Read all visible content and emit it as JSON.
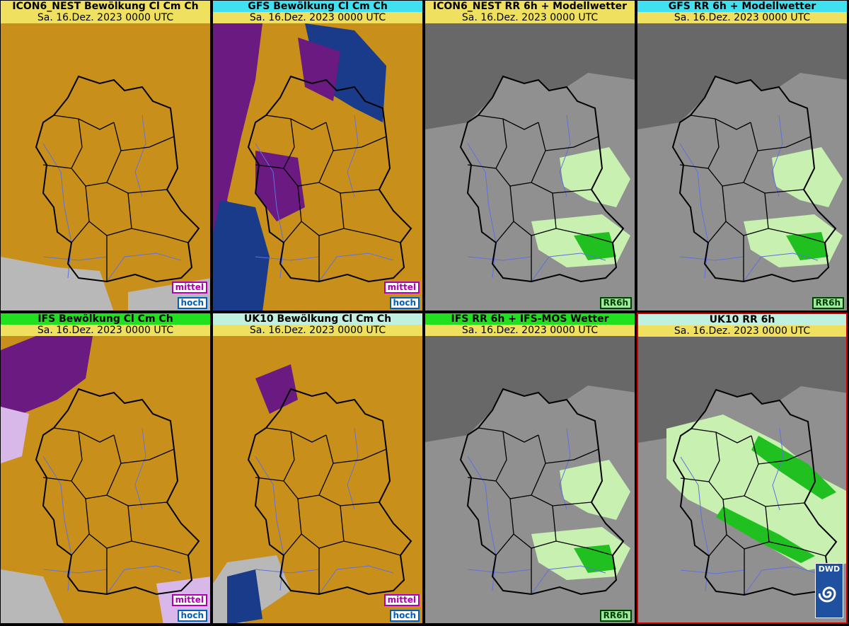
{
  "panels": [
    {
      "title": "ICON6_NEST Bewölkung Cl Cm Ch",
      "date": "Sa. 16.Dez. 2023 0000 UTC",
      "title_bg": "#f0e060",
      "type": "cloud",
      "badges": [
        "mittel",
        "hoch"
      ]
    },
    {
      "title": "GFS Bewölkung Cl Cm Ch",
      "date": "Sa. 16.Dez. 2023 0000 UTC",
      "title_bg": "#40e0f0",
      "type": "cloud",
      "badges": [
        "mittel",
        "hoch"
      ]
    },
    {
      "title": "ICON6_NEST RR 6h + Modellwetter",
      "date": "Sa. 16.Dez. 2023 0000 UTC",
      "title_bg": "#f0e060",
      "type": "rain",
      "badges": [
        "RR6h"
      ]
    },
    {
      "title": "GFS RR 6h + Modellwetter",
      "date": "Sa. 16.Dez. 2023 0000 UTC",
      "title_bg": "#40e0f0",
      "type": "rain",
      "badges": [
        "RR6h"
      ]
    },
    {
      "title": "IFS Bewölkung Cl Cm Ch",
      "date": "Sa. 16.Dez. 2023 0000 UTC",
      "title_bg": "#20e020",
      "type": "cloud",
      "badges": [
        "mittel",
        "hoch"
      ]
    },
    {
      "title": "UK10 Bewölkung Cl Cm Ch",
      "date": "Sa. 16.Dez. 2023 0000 UTC",
      "title_bg": "#c0f0e0",
      "type": "cloud",
      "badges": [
        "mittel",
        "hoch"
      ]
    },
    {
      "title": "IFS RR 6h + IFS-MOS Wetter",
      "date": "Sa. 16.Dez. 2023 0000 UTC",
      "title_bg": "#20e020",
      "type": "rain",
      "badges": [
        "RR6h"
      ]
    },
    {
      "title": "UK10 RR 6h",
      "date": "Sa. 16.Dez. 2023 0000 UTC",
      "title_bg": "#c0f0e0",
      "type": "rain",
      "badges": [],
      "logo": "DWD"
    }
  ],
  "colors": {
    "cloud_low": "#c8901a",
    "cloud_mid": "#6a1a80",
    "cloud_high": "#1a3a8a",
    "cloud_free": "#b8b8b8",
    "rain_land": "#909090",
    "rain_sea": "#686868",
    "rain_light": "#c8f0b0",
    "rain_mod": "#20c020",
    "border": "#000000",
    "river": "#6070e0"
  }
}
